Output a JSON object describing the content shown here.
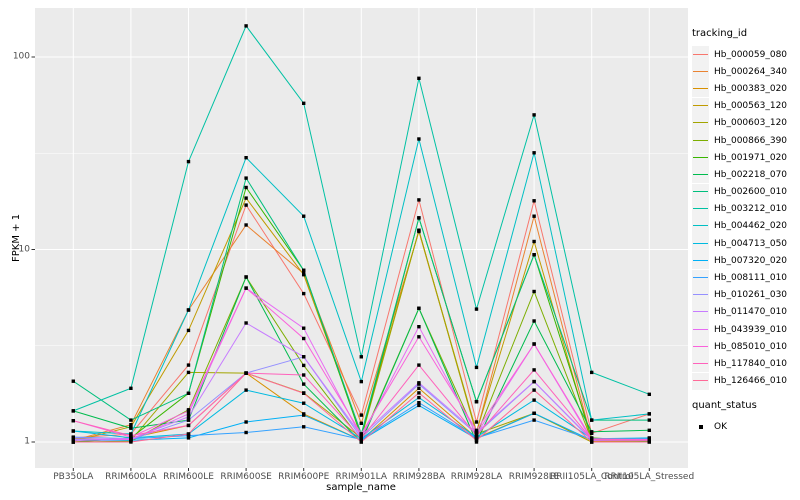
{
  "panel": {
    "bg_color": "#EBEBEB",
    "grid_color": "#FFFFFF",
    "axis_text_color": "#4D4D4D",
    "marker_color": "#000000",
    "legend_key_bg": "#F2F2F2"
  },
  "legend": {
    "tracking_title": "tracking_id",
    "quant_title": "quant_status",
    "quant_items": [
      {
        "label": "OK",
        "marker": "black-square"
      }
    ]
  },
  "chart_data": {
    "type": "line",
    "title": "",
    "xlabel": "sample_name",
    "ylabel": "FPKM + 1",
    "yscale": "log10",
    "y_ticks": [
      "1",
      "10",
      "100"
    ],
    "ylim": [
      0.73,
      180
    ],
    "grid": "white major+minor gridlines on gray panel",
    "legend_position": "right",
    "marker": "black-square (quant_status OK)",
    "categories": [
      "PB350LA",
      "RRIM600LA",
      "RRIM600LE",
      "RRIM600SE",
      "RRIM600PE",
      "RRIM901LA",
      "RRIM928BA",
      "RRIM928LA",
      "RRIM928LE",
      "RRII105LA_Control",
      "RRII105LA_Stressed"
    ],
    "series": [
      {
        "name": "Hb_000059_080",
        "color": "#F8766D",
        "values": [
          1.05,
          1.1,
          2.51,
          17.0,
          5.9,
          1.38,
          18.1,
          1.27,
          17.9,
          1.11,
          1.4
        ]
      },
      {
        "name": "Hb_000264_340",
        "color": "#EA8331",
        "values": [
          1.02,
          1.23,
          4.85,
          13.4,
          7.5,
          1.25,
          12.4,
          1.12,
          14.9,
          1.02,
          1.04
        ]
      },
      {
        "name": "Hb_000383_020",
        "color": "#D89000",
        "values": [
          1.0,
          1.05,
          1.22,
          2.28,
          1.4,
          1.02,
          1.9,
          1.05,
          1.41,
          1.0,
          1.02
        ]
      },
      {
        "name": "Hb_000563_120",
        "color": "#C09B00",
        "values": [
          1.01,
          1.2,
          3.8,
          18.5,
          7.4,
          1.1,
          12.5,
          1.13,
          11.0,
          1.01,
          1.02
        ]
      },
      {
        "name": "Hb_000603_120",
        "color": "#A3A500",
        "values": [
          1.04,
          1.02,
          2.3,
          2.28,
          1.8,
          1.05,
          12.6,
          1.1,
          1.41,
          1.0,
          1.0
        ]
      },
      {
        "name": "Hb_000866_390",
        "color": "#7CAE00",
        "values": [
          1.0,
          1.01,
          1.47,
          7.2,
          2.5,
          1.02,
          4.95,
          1.08,
          6.05,
          1.02,
          1.01
        ]
      },
      {
        "name": "Hb_001971_020",
        "color": "#39B600",
        "values": [
          1.0,
          1.05,
          1.79,
          21.0,
          7.8,
          1.06,
          14.6,
          1.62,
          9.4,
          1.05,
          1.01
        ]
      },
      {
        "name": "Hb_002218_070",
        "color": "#00BB4E",
        "values": [
          1.45,
          1.18,
          1.3,
          7.2,
          2.0,
          1.0,
          4.95,
          1.0,
          4.25,
          1.13,
          1.15
        ]
      },
      {
        "name": "Hb_002600_010",
        "color": "#00BF7D",
        "values": [
          2.07,
          1.3,
          1.79,
          23.5,
          7.8,
          1.1,
          14.6,
          1.62,
          9.4,
          1.3,
          1.3
        ]
      },
      {
        "name": "Hb_003212_010",
        "color": "#00C1A3",
        "values": [
          1.45,
          1.9,
          28.6,
          145.0,
          57.5,
          2.77,
          77.5,
          4.9,
          50.0,
          2.3,
          1.77
        ]
      },
      {
        "name": "Hb_004462_020",
        "color": "#00BFC4",
        "values": [
          1.14,
          1.1,
          4.85,
          30.0,
          14.9,
          2.06,
          37.5,
          2.44,
          31.8,
          1.3,
          1.4
        ]
      },
      {
        "name": "Hb_004713_050",
        "color": "#00BAE0",
        "values": [
          1.14,
          1.05,
          1.1,
          1.86,
          1.59,
          1.04,
          1.7,
          1.06,
          1.65,
          1.04,
          1.05
        ]
      },
      {
        "name": "Hb_007320_020",
        "color": "#00B0F6",
        "values": [
          1.02,
          1.02,
          1.05,
          1.27,
          1.38,
          1.02,
          1.55,
          1.04,
          1.41,
          1.02,
          1.03
        ]
      },
      {
        "name": "Hb_008111_010",
        "color": "#35A2FF",
        "values": [
          1.06,
          1.04,
          1.08,
          1.12,
          1.2,
          1.03,
          1.6,
          1.05,
          1.3,
          1.03,
          1.04
        ]
      },
      {
        "name": "Hb_010261_030",
        "color": "#9590FF",
        "values": [
          1.03,
          1.03,
          1.3,
          2.28,
          2.77,
          1.05,
          2.0,
          1.1,
          2.06,
          1.02,
          1.02
        ]
      },
      {
        "name": "Hb_011470_010",
        "color": "#C77CFF",
        "values": [
          1.05,
          1.04,
          1.35,
          4.15,
          2.77,
          1.08,
          2.03,
          1.12,
          2.06,
          1.03,
          1.03
        ]
      },
      {
        "name": "Hb_043939_010",
        "color": "#E76BF3",
        "values": [
          1.02,
          1.03,
          1.4,
          6.3,
          3.9,
          1.06,
          3.97,
          1.1,
          3.23,
          1.02,
          1.02
        ]
      },
      {
        "name": "Hb_085010_010",
        "color": "#FA62DB",
        "values": [
          1.29,
          1.06,
          1.45,
          6.3,
          3.45,
          1.1,
          3.52,
          1.15,
          3.23,
          1.04,
          1.03
        ]
      },
      {
        "name": "Hb_117840_010",
        "color": "#FF62BC",
        "values": [
          1.29,
          1.08,
          1.22,
          2.28,
          2.23,
          1.04,
          2.51,
          1.08,
          2.37,
          1.03,
          1.02
        ]
      },
      {
        "name": "Hb_126466_010",
        "color": "#FF6A98",
        "values": [
          1.0,
          1.0,
          1.1,
          2.28,
          1.79,
          1.0,
          1.8,
          1.02,
          1.86,
          1.0,
          1.0
        ]
      }
    ]
  }
}
